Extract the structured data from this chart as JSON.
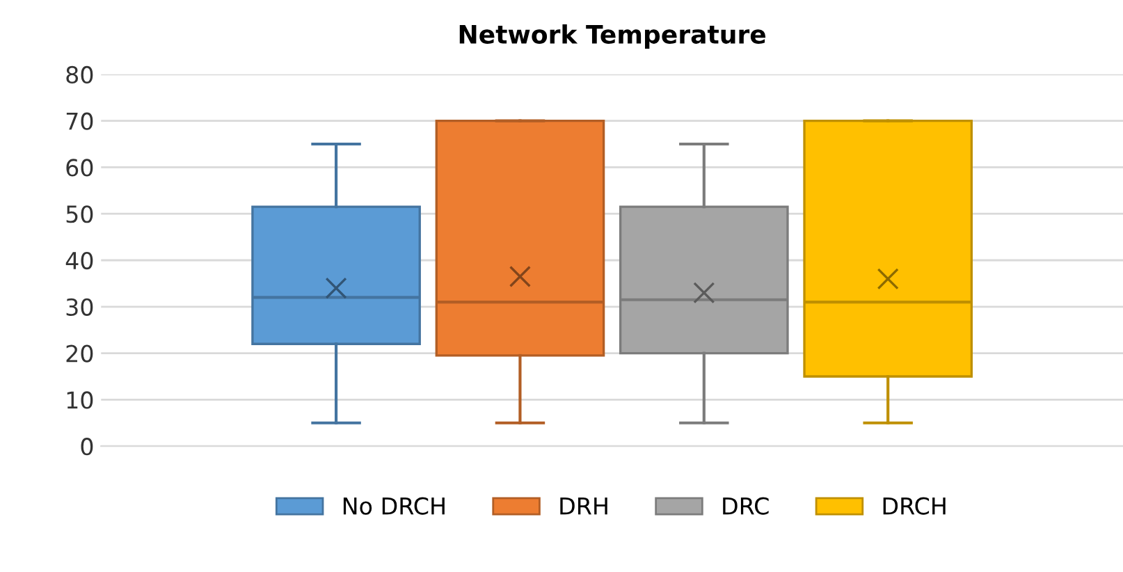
{
  "chart_data": {
    "type": "box",
    "title": "Network Temperature",
    "categories": [
      null
    ],
    "series": [
      {
        "name": "No DRCH",
        "color": "#5b9bd5",
        "boxes": [
          {
            "low": 5,
            "q1": 22,
            "median": 32,
            "q3": 51.5,
            "high": 65,
            "mean": 34
          }
        ]
      },
      {
        "name": "DRH",
        "color": "#ed7d31",
        "boxes": [
          {
            "low": 5,
            "q1": 19.5,
            "median": 31,
            "q3": 70,
            "high": 70,
            "mean": 36.5
          }
        ]
      },
      {
        "name": "DRC",
        "color": "#a5a5a5",
        "boxes": [
          {
            "low": 5,
            "q1": 20,
            "median": 31.5,
            "q3": 51.5,
            "high": 65,
            "mean": 33
          }
        ]
      },
      {
        "name": "DRCH",
        "color": "#ffc000",
        "boxes": [
          {
            "low": 5,
            "q1": 15,
            "median": 31,
            "q3": 70,
            "high": 70,
            "mean": 36
          }
        ]
      }
    ],
    "ylim": [
      0,
      80
    ],
    "yticks": [
      0,
      10,
      20,
      30,
      40,
      50,
      60,
      70,
      80
    ],
    "grid": "y",
    "legend": "bottom"
  }
}
